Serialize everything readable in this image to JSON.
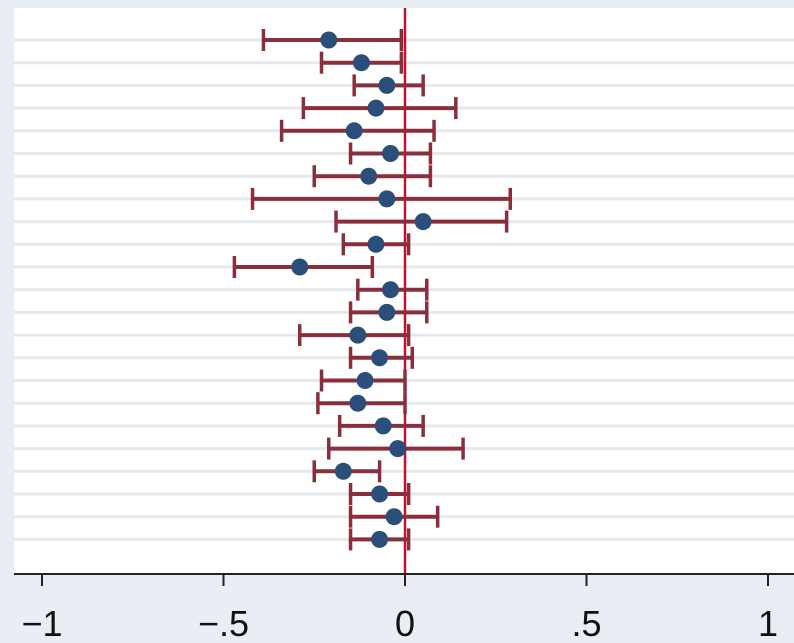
{
  "chart_data": {
    "type": "scatter",
    "subtype": "coefficient-plot-with-confidence-intervals",
    "orientation": "horizontal",
    "title": "",
    "xlabel": "",
    "ylabel": "",
    "xlim": [
      -1.07,
      1.05
    ],
    "x_ticks": [
      -1,
      -0.5,
      0,
      0.5,
      1
    ],
    "x_tick_labels": [
      "−1",
      "−.5",
      "0",
      ".5",
      "1"
    ],
    "reference_line_x": 0,
    "grid": "horizontal",
    "legend": "none",
    "points": [
      {
        "est": -0.21,
        "lo": -0.39,
        "hi": -0.01
      },
      {
        "est": -0.12,
        "lo": -0.23,
        "hi": -0.01
      },
      {
        "est": -0.05,
        "lo": -0.14,
        "hi": 0.05
      },
      {
        "est": -0.08,
        "lo": -0.28,
        "hi": 0.14
      },
      {
        "est": -0.14,
        "lo": -0.34,
        "hi": 0.08
      },
      {
        "est": -0.04,
        "lo": -0.15,
        "hi": 0.07
      },
      {
        "est": -0.1,
        "lo": -0.25,
        "hi": 0.07
      },
      {
        "est": -0.05,
        "lo": -0.42,
        "hi": 0.29
      },
      {
        "est": 0.05,
        "lo": -0.19,
        "hi": 0.28
      },
      {
        "est": -0.08,
        "lo": -0.17,
        "hi": 0.01
      },
      {
        "est": -0.29,
        "lo": -0.47,
        "hi": -0.09
      },
      {
        "est": -0.04,
        "lo": -0.13,
        "hi": 0.06
      },
      {
        "est": -0.05,
        "lo": -0.15,
        "hi": 0.06
      },
      {
        "est": -0.13,
        "lo": -0.29,
        "hi": 0.01
      },
      {
        "est": -0.07,
        "lo": -0.15,
        "hi": 0.02
      },
      {
        "est": -0.11,
        "lo": -0.23,
        "hi": 0.0
      },
      {
        "est": -0.13,
        "lo": -0.24,
        "hi": 0.0
      },
      {
        "est": -0.06,
        "lo": -0.18,
        "hi": 0.05
      },
      {
        "est": -0.02,
        "lo": -0.21,
        "hi": 0.16
      },
      {
        "est": -0.17,
        "lo": -0.25,
        "hi": -0.07
      },
      {
        "est": -0.07,
        "lo": -0.15,
        "hi": 0.01
      },
      {
        "est": -0.03,
        "lo": -0.15,
        "hi": 0.09
      },
      {
        "est": -0.07,
        "lo": -0.15,
        "hi": 0.01
      }
    ],
    "colors": {
      "point": "#2b4f7a",
      "interval": "#8b2e3c",
      "reference_line": "#c8102e",
      "grid": "#e2e9ef",
      "plot_background": "#ffffff",
      "outer_background": "#e8eef3",
      "axis": "#222222"
    }
  }
}
